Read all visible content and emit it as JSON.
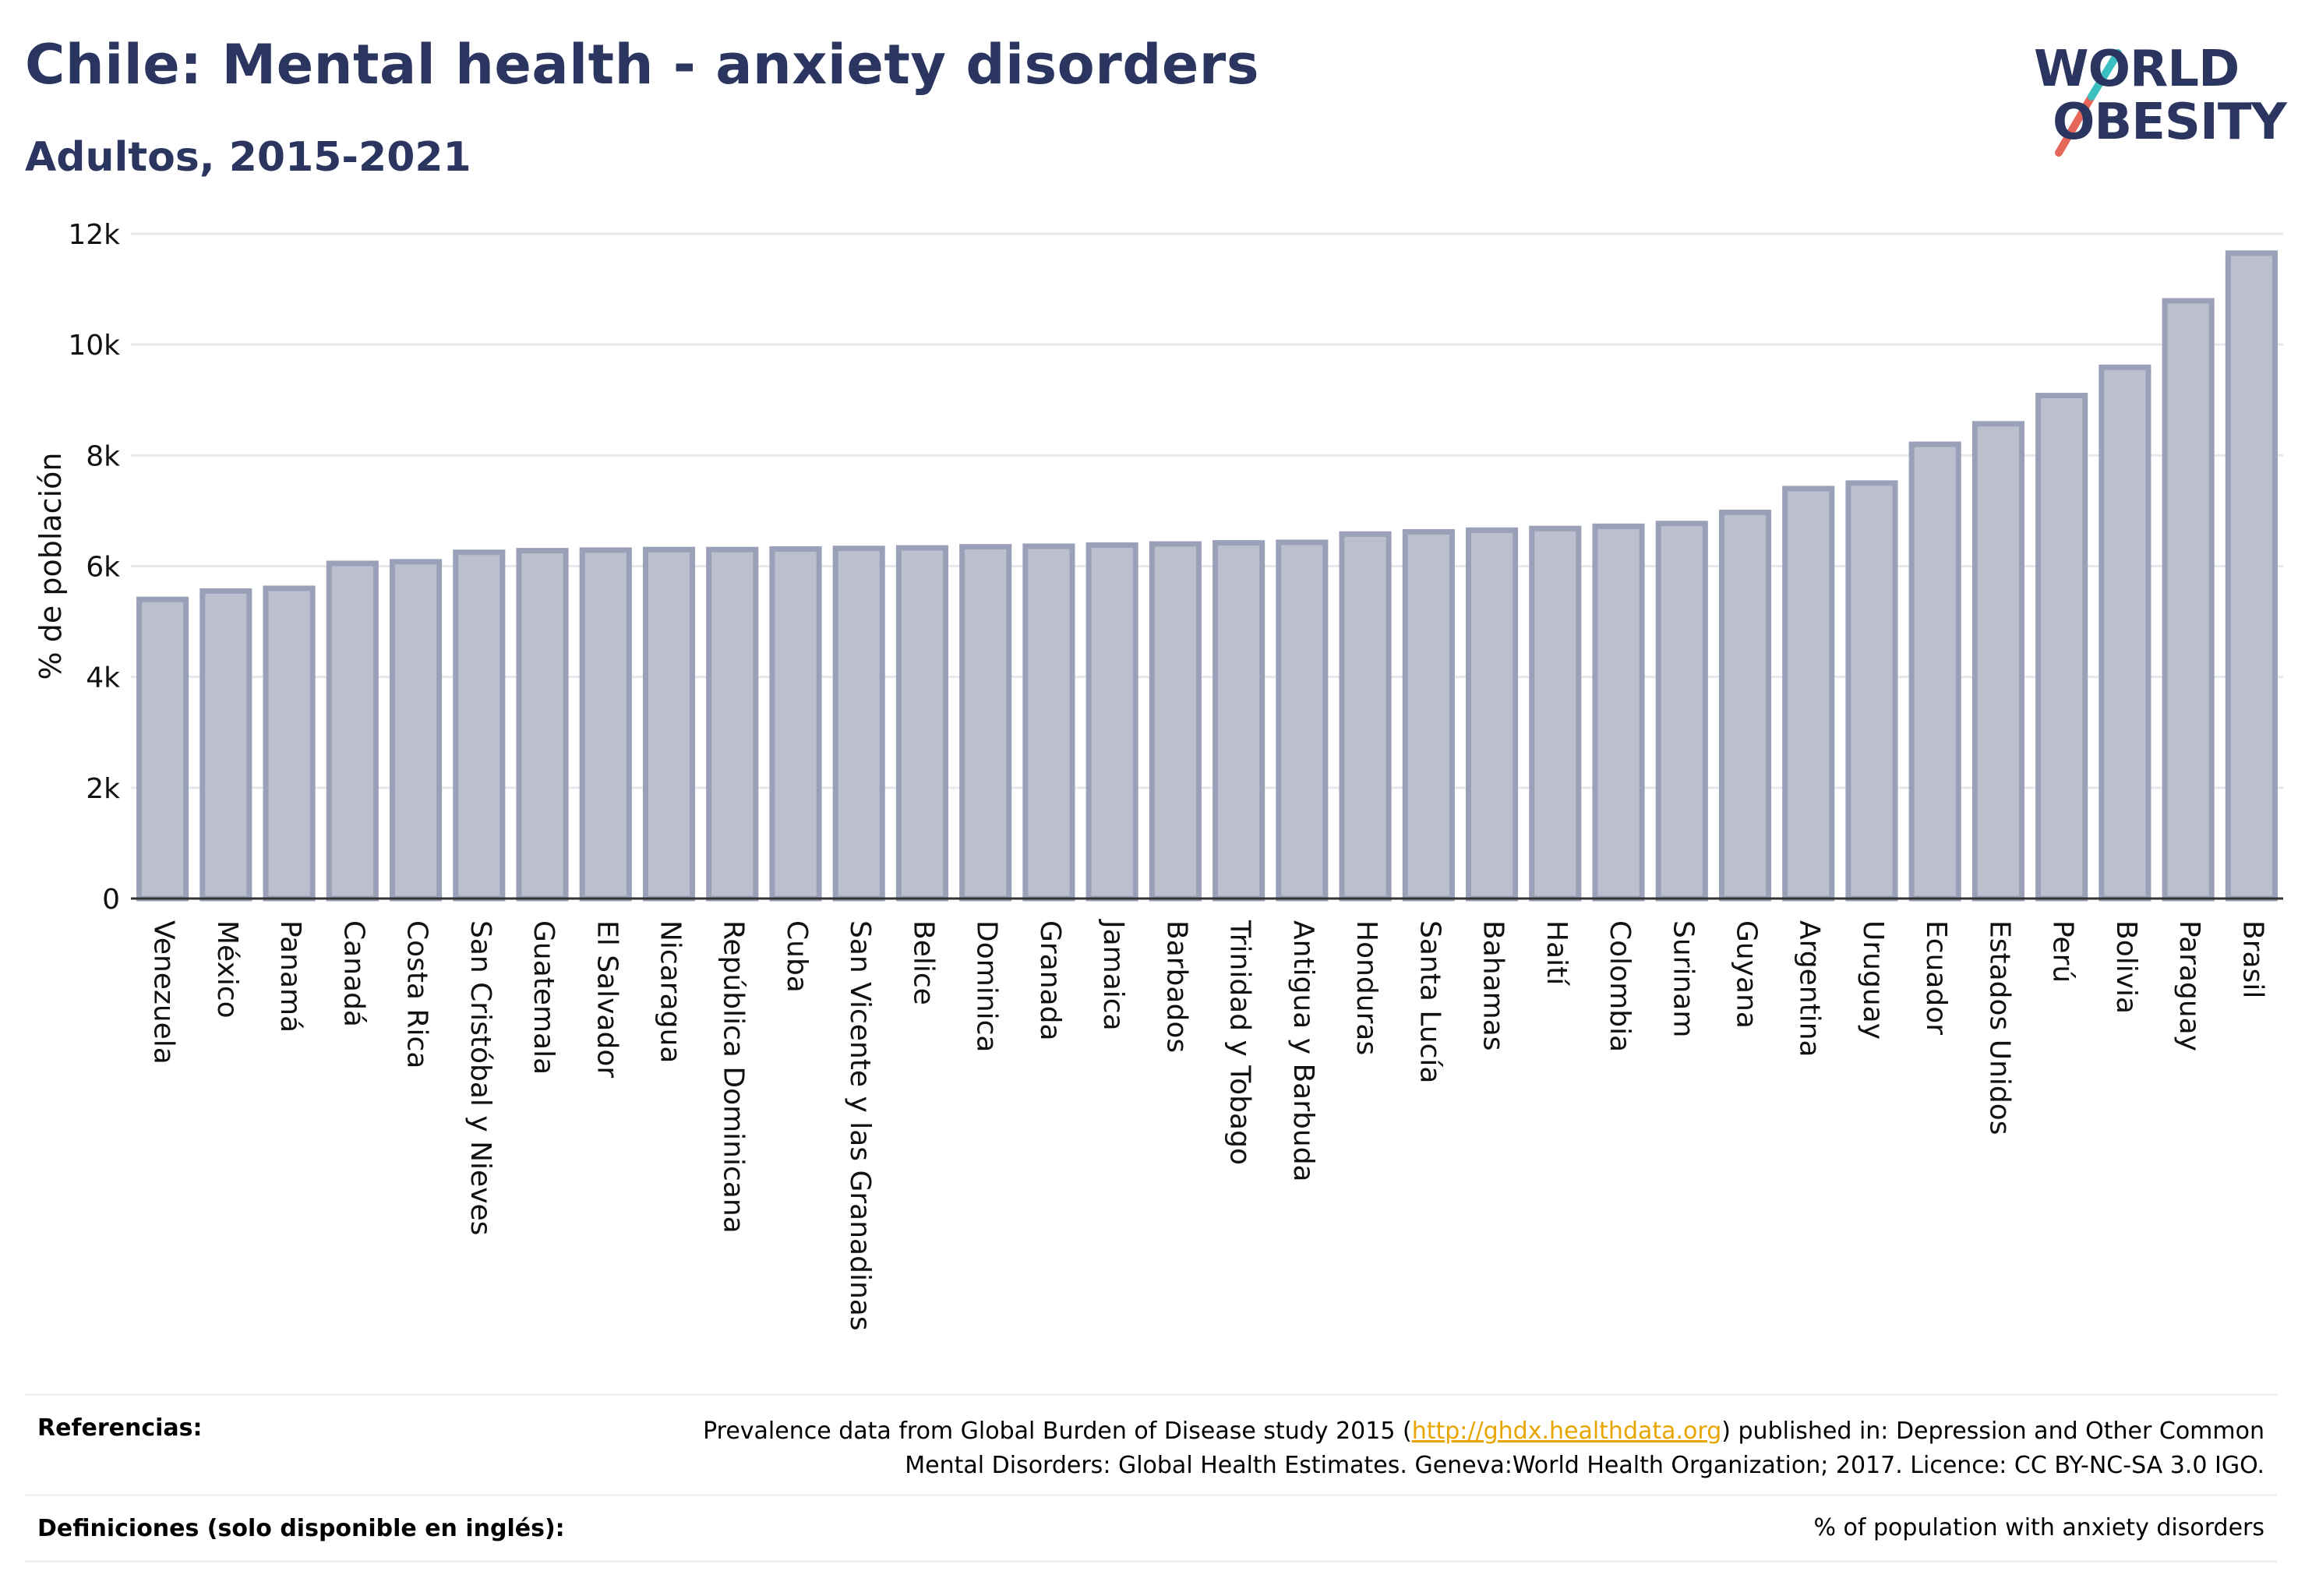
{
  "header": {
    "title": "Chile: Mental health - anxiety disorders",
    "subtitle": "Adultos, 2015-2021"
  },
  "logo": {
    "line1": "WORLD",
    "line2": "OBESITY",
    "colors": {
      "text": "#2b3660",
      "slash_teal": "#3bbfc0",
      "slash_red": "#e5675a"
    }
  },
  "chart_data": {
    "type": "bar",
    "ylabel": "% de población",
    "xlabel": "",
    "ylim": [
      0,
      12000
    ],
    "yticks": [
      0,
      2000,
      4000,
      6000,
      8000,
      10000,
      12000
    ],
    "ytick_labels": [
      "0",
      "2k",
      "4k",
      "6k",
      "8k",
      "10k",
      "12k"
    ],
    "grid": true,
    "bar_fill": "#bcc0ce",
    "bar_stroke": "#9aa0b7",
    "categories": [
      "Venezuela",
      "México",
      "Panamá",
      "Canadá",
      "Costa Rica",
      "San Cristóbal y Nieves",
      "Guatemala",
      "El Salvador",
      "Nicaragua",
      "República Dominicana",
      "Cuba",
      "San Vicente y las Granadinas",
      "Belice",
      "Dominica",
      "Granada",
      "Jamaica",
      "Barbados",
      "Trinidad y Tobago",
      "Antigua y Barbuda",
      "Honduras",
      "Santa Lucía",
      "Bahamas",
      "Haití",
      "Colombia",
      "Surinam",
      "Guyana",
      "Argentina",
      "Uruguay",
      "Ecuador",
      "Estados Unidos",
      "Perú",
      "Bolivia",
      "Paraguay",
      "Brasil"
    ],
    "values": [
      5400,
      5550,
      5600,
      6050,
      6080,
      6250,
      6280,
      6290,
      6300,
      6300,
      6310,
      6320,
      6330,
      6350,
      6360,
      6380,
      6400,
      6420,
      6430,
      6580,
      6620,
      6650,
      6680,
      6720,
      6770,
      6970,
      7400,
      7500,
      8200,
      8570,
      9080,
      9590,
      10790,
      11650
    ]
  },
  "footer": {
    "references_label": "Referencias:",
    "references_pre": "Prevalence data from Global Burden of Disease study 2015 (",
    "references_link": "http://ghdx.healthdata.org",
    "references_mid": ") published in: Depression and Other Common",
    "references_line2": "Mental Disorders: Global Health Estimates. Geneva:World Health Organization; 2017. Licence: CC BY-NC-SA 3.0 IGO.",
    "definitions_label": "Definiciones (solo disponible en inglés):",
    "definitions_text": "% of population with anxiety disorders"
  }
}
